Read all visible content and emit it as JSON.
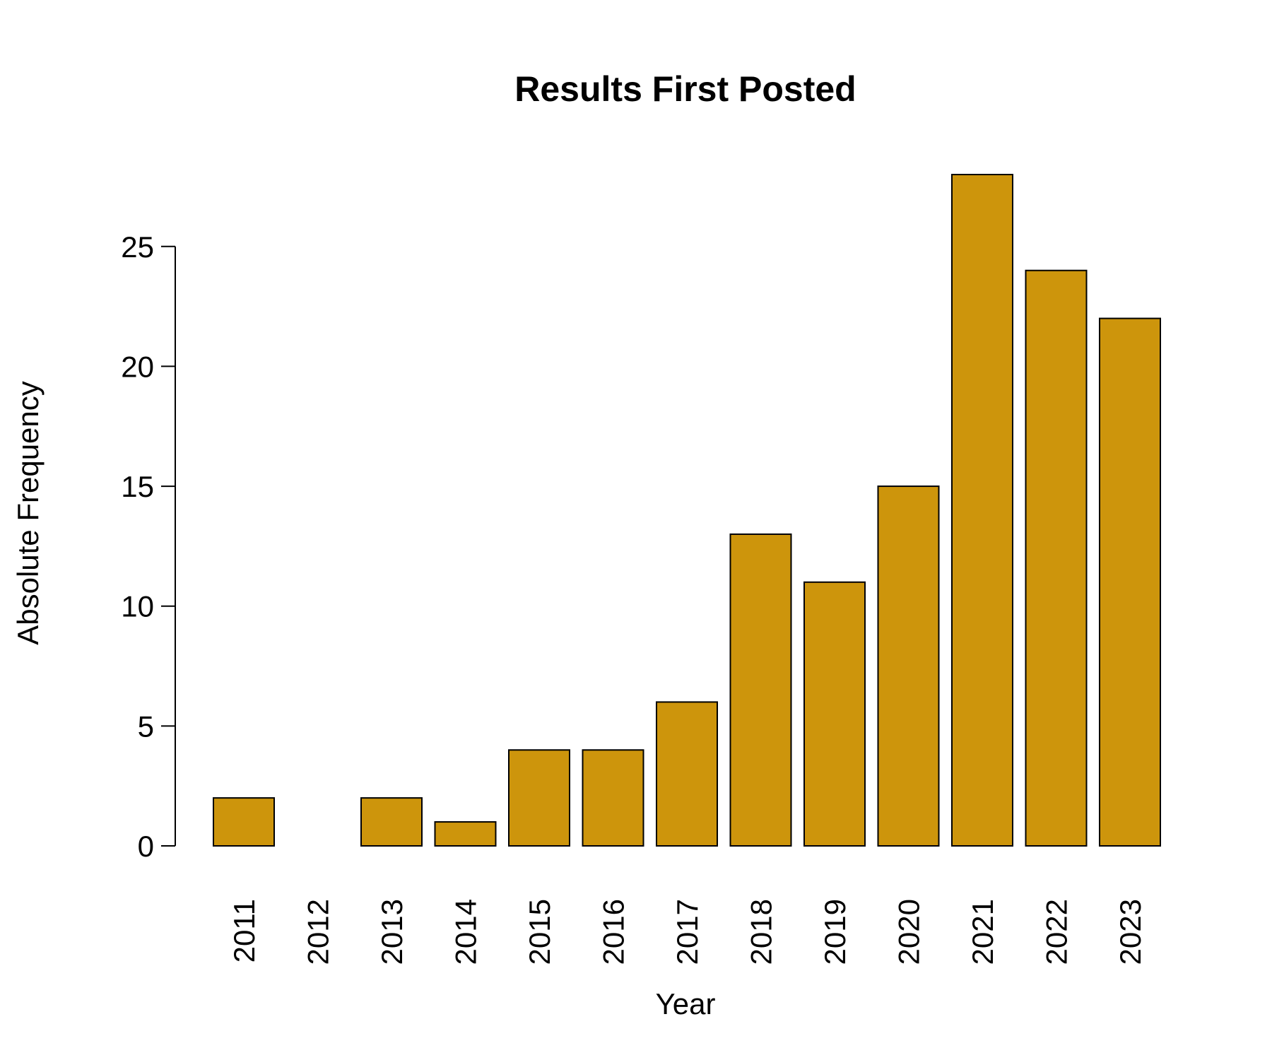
{
  "chart_data": {
    "type": "bar",
    "title": "Results First Posted",
    "x_label": "Year",
    "y_label": "Absolute Frequency",
    "categories": [
      "2011",
      "2012",
      "2013",
      "2014",
      "2015",
      "2016",
      "2017",
      "2018",
      "2019",
      "2020",
      "2021",
      "2022",
      "2023"
    ],
    "values": [
      2,
      0,
      2,
      1,
      4,
      4,
      6,
      13,
      11,
      15,
      28,
      24,
      22
    ],
    "color": "#CD950C",
    "ylim": [
      0,
      28
    ],
    "yticks": [
      0,
      5,
      10,
      15,
      20,
      25
    ],
    "grid": false
  }
}
